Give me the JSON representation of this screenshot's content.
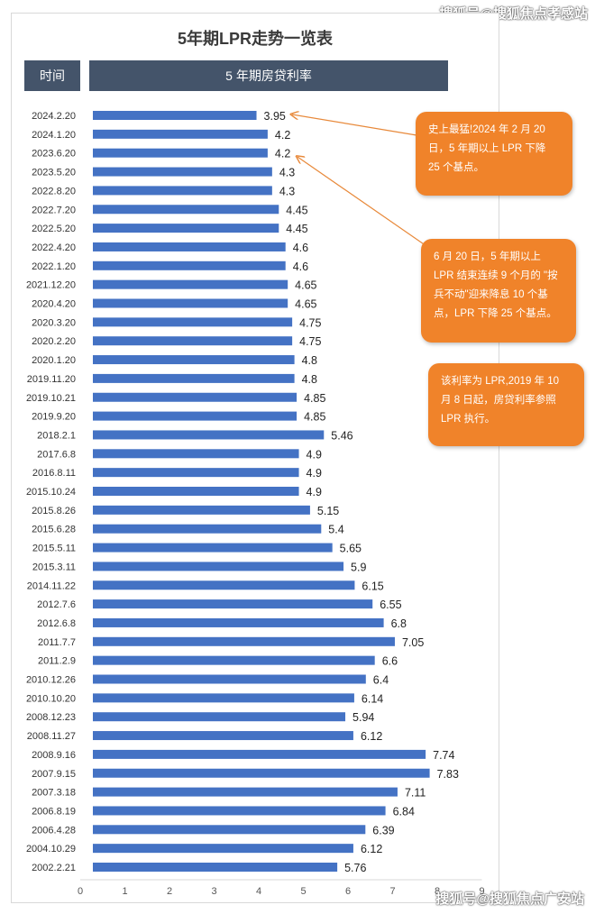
{
  "watermark_top": "搜狐号@搜狐焦点孝感站",
  "watermark_bottom": "搜狐号@搜狐焦点广安站",
  "chart_data": {
    "type": "bar",
    "orientation": "horizontal",
    "title": "5年期LPR走势一览表",
    "header_left": "时间",
    "header_right": "5 年期房贷利率",
    "xlim": [
      0,
      9
    ],
    "xticks": [
      0,
      1,
      2,
      3,
      4,
      5,
      6,
      7,
      8,
      9
    ],
    "bar_color": "#4472c4",
    "categories": [
      "2024.2.20",
      "2024.1.20",
      "2023.6.20",
      "2023.5.20",
      "2022.8.20",
      "2022.7.20",
      "2022.5.20",
      "2022.4.20",
      "2022.1.20",
      "2021.12.20",
      "2020.4.20",
      "2020.3.20",
      "2020.2.20",
      "2020.1.20",
      "2019.11.20",
      "2019.10.21",
      "2019.9.20",
      "2018.2.1",
      "2017.6.8",
      "2016.8.11",
      "2015.10.24",
      "2015.8.26",
      "2015.6.28",
      "2015.5.11",
      "2015.3.11",
      "2014.11.22",
      "2012.7.6",
      "2012.6.8",
      "2011.7.7",
      "2011.2.9",
      "2010.12.26",
      "2010.10.20",
      "2008.12.23",
      "2008.11.27",
      "2008.9.16",
      "2007.9.15",
      "2007.3.18",
      "2006.8.19",
      "2006.4.28",
      "2004.10.29",
      "2002.2.21"
    ],
    "values": [
      3.95,
      4.2,
      4.2,
      4.3,
      4.3,
      4.45,
      4.45,
      4.6,
      4.6,
      4.65,
      4.65,
      4.75,
      4.75,
      4.8,
      4.8,
      4.85,
      4.85,
      5.46,
      4.9,
      4.9,
      4.9,
      5.15,
      5.4,
      5.65,
      5.9,
      6.15,
      6.55,
      6.8,
      7.05,
      6.6,
      6.4,
      6.14,
      5.94,
      6.12,
      7.74,
      7.83,
      7.11,
      6.84,
      6.39,
      6.12,
      5.76
    ],
    "value_labels": [
      "3.95",
      "4.2",
      "4.2",
      "4.3",
      "4.3",
      "4.45",
      "4.45",
      "4.6",
      "4.6",
      "4.65",
      "4.65",
      "4.75",
      "4.75",
      "4.8",
      "4.8",
      "4.85",
      "4.85",
      "5.46",
      "4.9",
      "4.9",
      "4.9",
      "5.15",
      "5.4",
      "5.65",
      "5.9",
      "6.15",
      "6.55",
      "6.8",
      "7.05",
      "6.6",
      "6.4",
      "6.14",
      "5.94",
      "6.12",
      "7.74",
      "7.83",
      "7.11",
      "6.84",
      "6.39",
      "6.12",
      "5.76"
    ],
    "annotations": [
      {
        "text": "史上最猛!2024 年 2 月 20 日，5 年期以上 LPR 下降 25 个基点。",
        "points_to": "2024.2.20"
      },
      {
        "text": "6 月 20 日，5 年期以上 LPR 结束连续 9 个月的 \"按兵不动\"迎来降息 10 个基点，LPR 下降 25 个基点。",
        "points_to": "2023.6.20"
      },
      {
        "text": "该利率为 LPR,2019 年 10 月 8 日起，房贷利率参照 LPR 执行。",
        "points_to": ""
      }
    ],
    "annotation_color": "#f0832a"
  }
}
